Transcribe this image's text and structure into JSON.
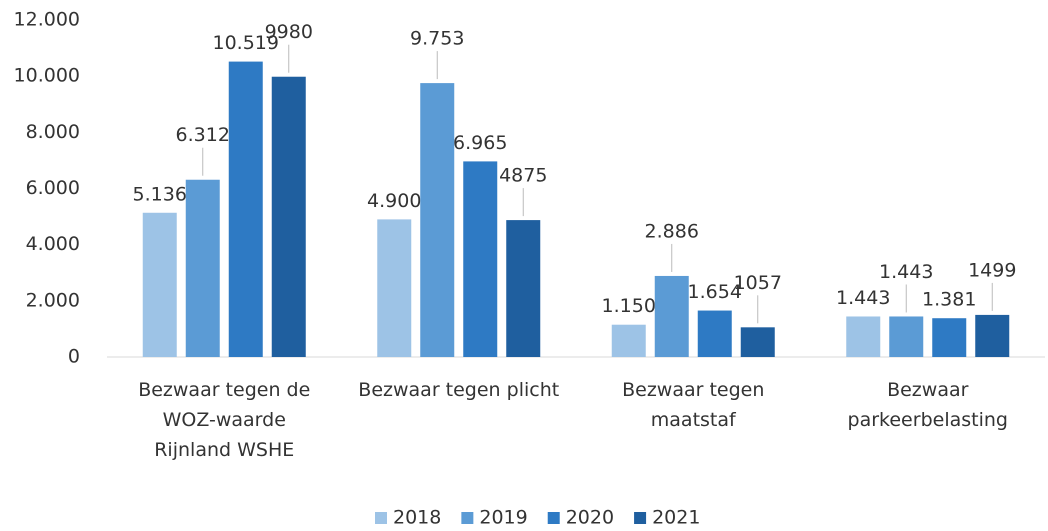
{
  "chart_data": {
    "type": "bar",
    "categories": [
      "Bezwaar tegen de\nWOZ-waarde\nRijnland WSHE",
      "Bezwaar tegen plicht",
      "Bezwaar tegen\nmaatstaf",
      "Bezwaar\nparkeerbelasting"
    ],
    "series": [
      {
        "name": "2018",
        "color": "#9dc3e6",
        "values": [
          5136,
          4900,
          1150,
          1443
        ],
        "value_labels": [
          "5.136",
          "4.900",
          "1.150",
          "1.443"
        ]
      },
      {
        "name": "2019",
        "color": "#5b9bd5",
        "values": [
          6312,
          9753,
          2886,
          1443
        ],
        "value_labels": [
          "6.312",
          "9.753",
          "2.886",
          "1.443"
        ]
      },
      {
        "name": "2020",
        "color": "#2e7ac4",
        "values": [
          10519,
          6965,
          1654,
          1381
        ],
        "value_labels": [
          "10.519",
          "6.965",
          "1.654",
          "1.381"
        ]
      },
      {
        "name": "2021",
        "color": "#1f5f9f",
        "values": [
          9980,
          4875,
          1057,
          1499
        ]
      }
    ],
    "ylim": [
      0,
      12000
    ],
    "yticks": [
      0,
      {
        "value": 2000,
        "label": "2.000"
      },
      {
        "value": 4000,
        "label": "4.000"
      },
      {
        "value": 6000,
        "label": "6.000"
      },
      {
        "value": 8000,
        "label": "8.000"
      },
      {
        "value": 10000,
        "label": "10.000"
      },
      {
        "value": 12000,
        "label": "12.000"
      }
    ],
    "grid": false,
    "legend": "bottom"
  }
}
